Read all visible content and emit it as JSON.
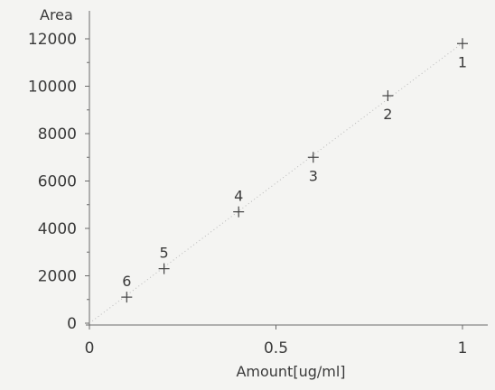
{
  "chart_data": {
    "type": "scatter",
    "title": "",
    "xlabel": "Amount[ug/ml]",
    "ylabel": "Area",
    "xlim": [
      0,
      1.05
    ],
    "ylim": [
      0,
      12500
    ],
    "x_ticks": [
      0,
      0.5,
      1
    ],
    "x_tick_labels": [
      "0",
      "0.5",
      "1"
    ],
    "y_ticks": [
      0,
      2000,
      4000,
      6000,
      8000,
      10000,
      12000
    ],
    "y_tick_labels": [
      "0",
      "2000",
      "4000",
      "6000",
      "8000",
      "10000",
      "12000"
    ],
    "marker": "plus",
    "trendline": "dotted",
    "grid": false,
    "points": [
      {
        "label": "1",
        "x": 1.0,
        "y": 11800
      },
      {
        "label": "2",
        "x": 0.8,
        "y": 9600
      },
      {
        "label": "3",
        "x": 0.6,
        "y": 7000
      },
      {
        "label": "4",
        "x": 0.4,
        "y": 4700
      },
      {
        "label": "5",
        "x": 0.2,
        "y": 2300
      },
      {
        "label": "6",
        "x": 0.1,
        "y": 1100
      }
    ]
  },
  "colors": {
    "background": "#f4f4f2",
    "axis": "#6a6a6a",
    "marker": "#444444",
    "text": "#3a3a3a",
    "trendline": "#b8b8b8"
  }
}
